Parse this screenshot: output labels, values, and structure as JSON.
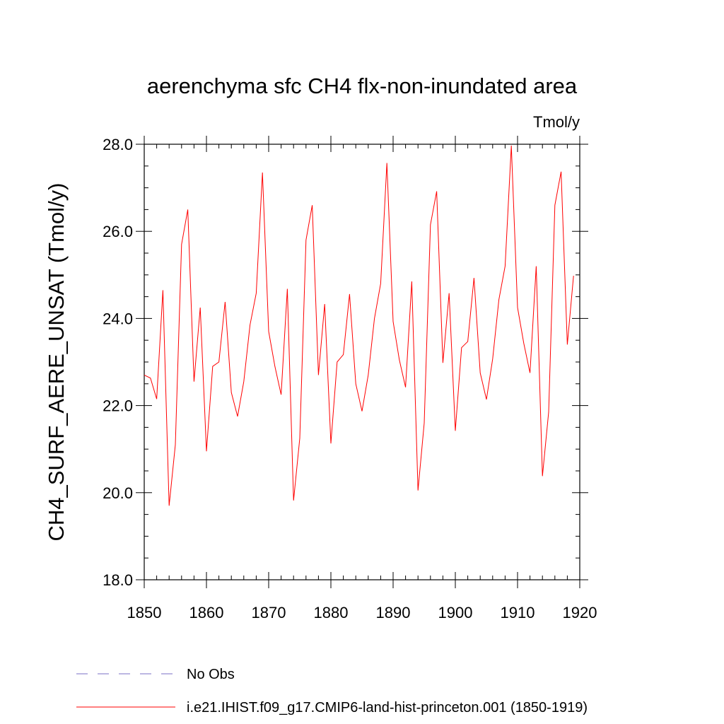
{
  "chart_data": {
    "type": "line",
    "title": "aerenchyma sfc CH4 flx-non-inundated area",
    "units_label": "Tmol/y",
    "ylabel": "CH4_SURF_AERE_UNSAT  (Tmol/y)",
    "xlabel": "",
    "xlim": [
      1850,
      1920
    ],
    "ylim": [
      18.0,
      28.0
    ],
    "x_ticks": [
      1850,
      1860,
      1870,
      1880,
      1890,
      1900,
      1910,
      1920
    ],
    "y_ticks": [
      18.0,
      20.0,
      22.0,
      24.0,
      26.0,
      28.0
    ],
    "x_tick_labels": [
      "1850",
      "1860",
      "1870",
      "1880",
      "1890",
      "1900",
      "1910",
      "1920"
    ],
    "y_tick_labels": [
      "18.0",
      "20.0",
      "22.0",
      "24.0",
      "26.0",
      "28.0"
    ],
    "grid": false,
    "legend_position": "bottom",
    "series": [
      {
        "name": "i.e21.IHIST.f09_g17.CMIP6-land-hist-princeton.001 (1850-1919)",
        "color": "#ff0000",
        "style": "solid",
        "x": [
          1850,
          1851,
          1852,
          1853,
          1854,
          1855,
          1856,
          1857,
          1858,
          1859,
          1860,
          1861,
          1862,
          1863,
          1864,
          1865,
          1866,
          1867,
          1868,
          1869,
          1870,
          1871,
          1872,
          1873,
          1874,
          1875,
          1876,
          1877,
          1878,
          1879,
          1880,
          1881,
          1882,
          1883,
          1884,
          1885,
          1886,
          1887,
          1888,
          1889,
          1890,
          1891,
          1892,
          1893,
          1894,
          1895,
          1896,
          1897,
          1898,
          1899,
          1900,
          1901,
          1902,
          1903,
          1904,
          1905,
          1906,
          1907,
          1908,
          1909,
          1910,
          1911,
          1912,
          1913,
          1914,
          1915,
          1916,
          1917,
          1918,
          1919
        ],
        "y": [
          22.7,
          22.63,
          22.15,
          24.65,
          19.7,
          21.1,
          25.7,
          26.5,
          22.55,
          24.25,
          20.95,
          22.9,
          23.0,
          24.38,
          22.3,
          21.75,
          22.55,
          23.85,
          24.58,
          27.35,
          23.7,
          22.9,
          22.25,
          24.68,
          19.82,
          21.25,
          25.8,
          26.6,
          22.7,
          24.33,
          21.13,
          23.0,
          23.17,
          24.56,
          22.5,
          21.87,
          22.7,
          24.0,
          24.8,
          27.57,
          23.93,
          23.05,
          22.42,
          24.85,
          20.05,
          21.6,
          26.15,
          26.92,
          22.98,
          24.58,
          21.42,
          23.33,
          23.47,
          24.93,
          22.75,
          22.14,
          23.07,
          24.43,
          25.2,
          27.97,
          24.25,
          23.43,
          22.75,
          25.2,
          20.38,
          21.85,
          26.6,
          27.37,
          23.4,
          24.98
        ]
      },
      {
        "name": "No Obs",
        "color": "#7b6fc4",
        "style": "dashed",
        "x": [],
        "y": []
      }
    ]
  }
}
